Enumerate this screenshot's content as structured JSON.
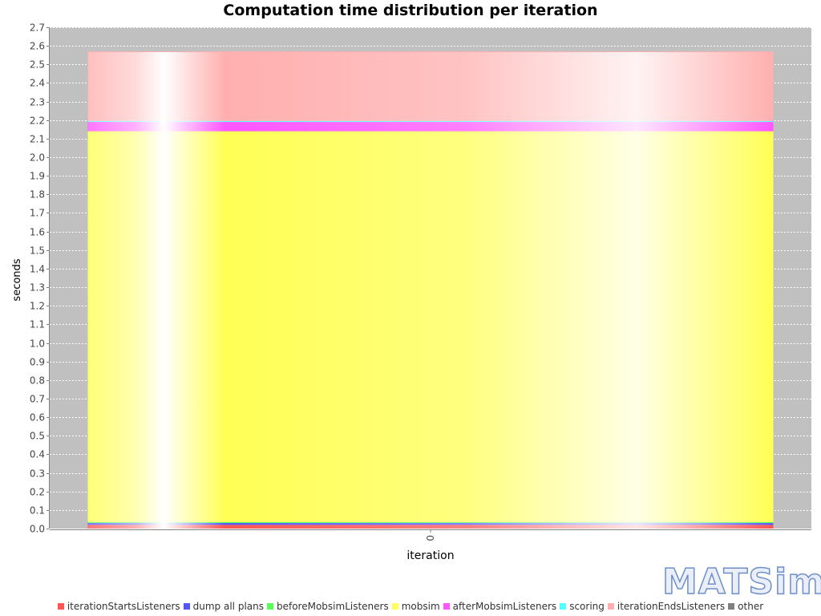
{
  "chart_data": {
    "type": "bar",
    "stacked": true,
    "title": "Computation time distribution per iteration",
    "xlabel": "iteration",
    "ylabel": "seconds",
    "categories": [
      "0"
    ],
    "ylim": [
      0,
      2.7
    ],
    "yticks": [
      "0.0",
      "0.1",
      "0.2",
      "0.3",
      "0.4",
      "0.5",
      "0.6",
      "0.7",
      "0.8",
      "0.9",
      "1.0",
      "1.1",
      "1.2",
      "1.3",
      "1.4",
      "1.5",
      "1.6",
      "1.7",
      "1.8",
      "1.9",
      "2.0",
      "2.1",
      "2.2",
      "2.3",
      "2.4",
      "2.5",
      "2.6",
      "2.7"
    ],
    "grid": true,
    "legend_position": "bottom",
    "plot_background": "#c0c0c0",
    "series": [
      {
        "name": "iterationStartsListeners",
        "color": "#ff5555",
        "values": [
          0.02
        ]
      },
      {
        "name": "dump all plans",
        "color": "#5555ff",
        "values": [
          0.01
        ]
      },
      {
        "name": "beforeMobsimListeners",
        "color": "#55ff55",
        "values": [
          0.005
        ]
      },
      {
        "name": "mobsim",
        "color": "#ffff55",
        "values": [
          2.105
        ]
      },
      {
        "name": "afterMobsimListeners",
        "color": "#ff55ff",
        "values": [
          0.05
        ]
      },
      {
        "name": "scoring",
        "color": "#55ffff",
        "values": [
          0.005
        ]
      },
      {
        "name": "iterationEndsListeners",
        "color": "#ffafaf",
        "values": [
          0.375
        ]
      },
      {
        "name": "other",
        "color": "#808080",
        "values": [
          0.0
        ]
      }
    ]
  },
  "logo_text": "MATSim"
}
